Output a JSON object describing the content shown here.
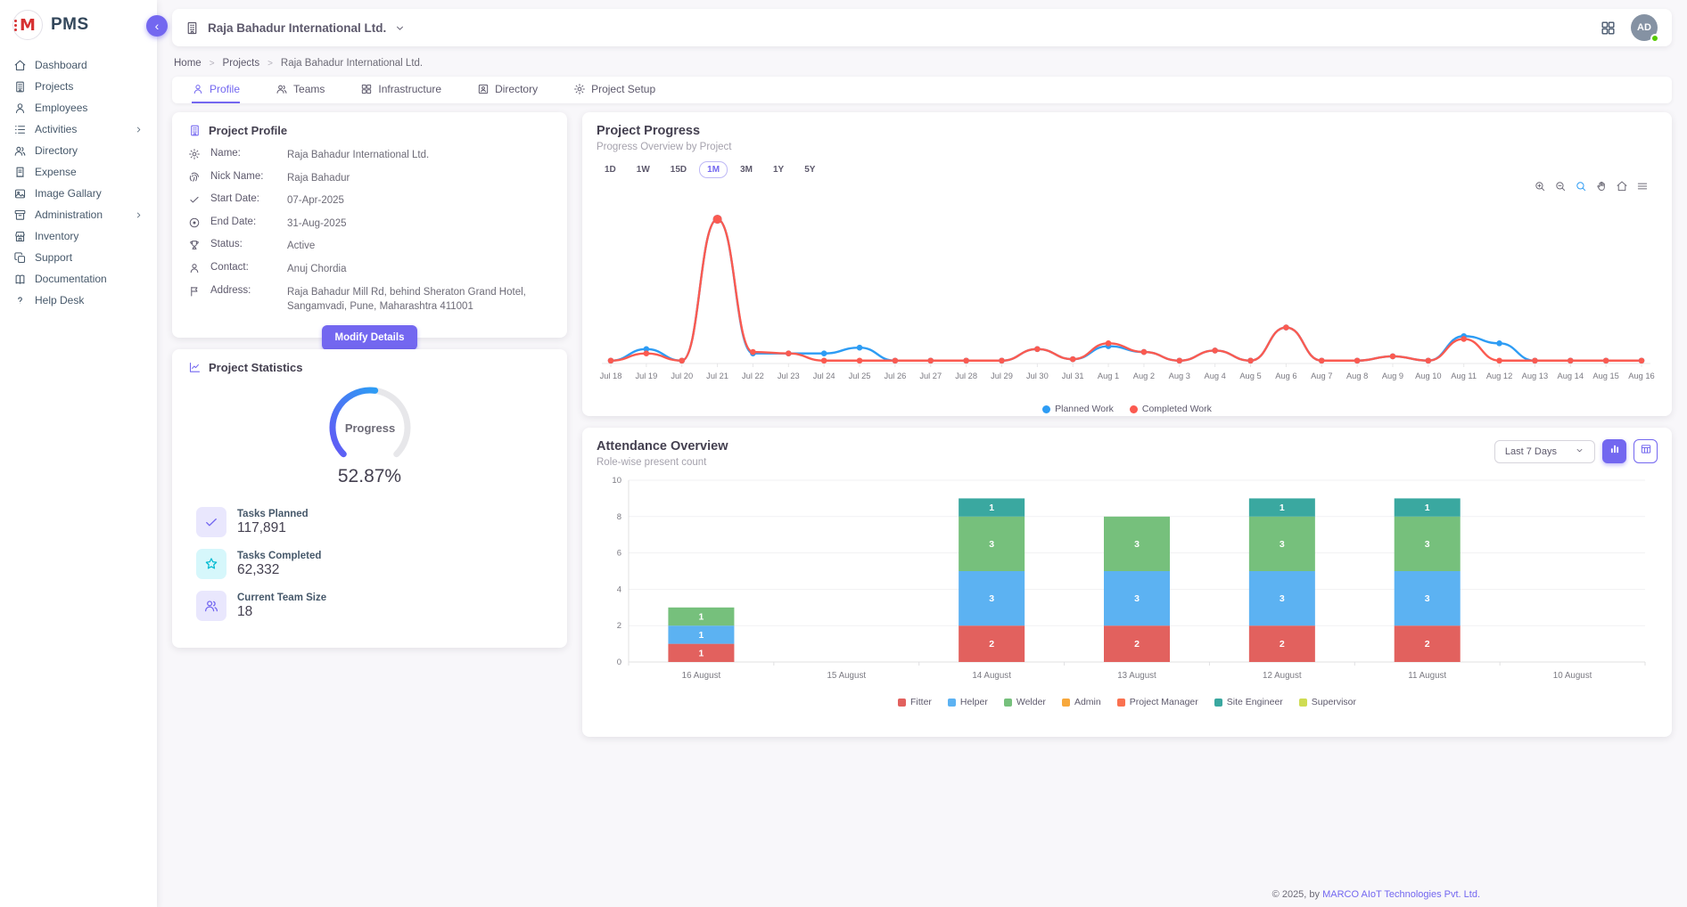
{
  "app": {
    "name": "PMS",
    "logo_letter": "M"
  },
  "sidebar": {
    "items": [
      {
        "label": "Dashboard",
        "icon": "home-icon",
        "submenu": false
      },
      {
        "label": "Projects",
        "icon": "building-icon",
        "submenu": false
      },
      {
        "label": "Employees",
        "icon": "user-icon",
        "submenu": false
      },
      {
        "label": "Activities",
        "icon": "list-icon",
        "submenu": true
      },
      {
        "label": "Directory",
        "icon": "users-icon",
        "submenu": false
      },
      {
        "label": "Expense",
        "icon": "receipt-icon",
        "submenu": false
      },
      {
        "label": "Image Gallary",
        "icon": "image-icon",
        "submenu": false
      },
      {
        "label": "Administration",
        "icon": "archive-icon",
        "submenu": true
      },
      {
        "label": "Inventory",
        "icon": "store-icon",
        "submenu": false
      },
      {
        "label": "Support",
        "icon": "copy-icon",
        "submenu": false
      },
      {
        "label": "Documentation",
        "icon": "book-icon",
        "submenu": false
      },
      {
        "label": "Help Desk",
        "icon": "help-icon",
        "submenu": false
      }
    ]
  },
  "header": {
    "company": "Raja Bahadur International Ltd.",
    "avatar_initials": "AD"
  },
  "breadcrumb": [
    "Home",
    "Projects",
    "Raja Bahadur International Ltd."
  ],
  "tabs": [
    {
      "label": "Profile",
      "icon": "user-icon",
      "active": true
    },
    {
      "label": "Teams",
      "icon": "users-icon",
      "active": false
    },
    {
      "label": "Infrastructure",
      "icon": "grid-icon",
      "active": false
    },
    {
      "label": "Directory",
      "icon": "id-card-icon",
      "active": false
    },
    {
      "label": "Project Setup",
      "icon": "gear-icon",
      "active": false
    }
  ],
  "profile_card": {
    "title": "Project Profile",
    "fields": [
      {
        "icon": "gear-icon",
        "label": "Name:",
        "value": "Raja Bahadur International Ltd."
      },
      {
        "icon": "fingerprint-icon",
        "label": "Nick Name:",
        "value": "Raja Bahadur"
      },
      {
        "icon": "check-icon",
        "label": "Start Date:",
        "value": "07-Apr-2025"
      },
      {
        "icon": "record-icon",
        "label": "End Date:",
        "value": "31-Aug-2025"
      },
      {
        "icon": "trophy-icon",
        "label": "Status:",
        "value": "Active"
      },
      {
        "icon": "person-icon",
        "label": "Contact:",
        "value": "Anuj Chordia"
      },
      {
        "icon": "flag-icon",
        "label": "Address:",
        "value": "Raja Bahadur Mill Rd, behind Sheraton Grand Hotel, Sangamvadi, Pune, Maharashtra 411001"
      }
    ],
    "button_label": "Modify Details"
  },
  "stats_card": {
    "title": "Project Statistics",
    "gauge_label": "Progress",
    "gauge_value": "52.87%",
    "gauge_percent": 52.87,
    "gauge_colors": {
      "start": "#6358f5",
      "end": "#2d9cf4",
      "track": "#e7e7ea"
    },
    "stats": [
      {
        "icon": "check-icon",
        "icon_bg": "#e9e7fd",
        "icon_color": "#7367f0",
        "label": "Tasks Planned",
        "value": "117,891"
      },
      {
        "icon": "star-icon",
        "icon_bg": "#d6f7fb",
        "icon_color": "#00bad1",
        "label": "Tasks Completed",
        "value": "62,332"
      },
      {
        "icon": "team-icon",
        "icon_bg": "#e9e7fd",
        "icon_color": "#7367f0",
        "label": "Current Team Size",
        "value": "18"
      }
    ]
  },
  "progress_card": {
    "title": "Project Progress",
    "subtitle": "Progress Overview by Project",
    "ranges": [
      "1D",
      "1W",
      "15D",
      "1M",
      "3M",
      "1Y",
      "5Y"
    ],
    "active_range": "1M",
    "toolbar_icons": [
      "zoom-in-icon",
      "zoom-out-icon",
      "selection-zoom-icon",
      "pan-icon",
      "home-icon",
      "menu-icon"
    ]
  },
  "attendance_card": {
    "title": "Attendance Overview",
    "subtitle": "Role-wise present count",
    "filter_label": "Last 7 Days",
    "view_buttons": [
      "bar-chart-icon",
      "table-icon"
    ],
    "active_view": "bar-chart-icon"
  },
  "footer": {
    "prefix": "© 2025, by ",
    "link_text": "MARCO AIoT Technologies Pvt. Ltd."
  },
  "chart_data": [
    {
      "type": "line",
      "title": "Project Progress",
      "x": [
        "Jul 18",
        "Jul 19",
        "Jul 20",
        "Jul 21",
        "Jul 22",
        "Jul 23",
        "Jul 24",
        "Jul 25",
        "Jul 26",
        "Jul 27",
        "Jul 28",
        "Jul 29",
        "Jul 30",
        "Jul 31",
        "Aug 1",
        "Aug 2",
        "Aug 3",
        "Aug 4",
        "Aug 5",
        "Aug 6",
        "Aug 7",
        "Aug 8",
        "Aug 9",
        "Aug 10",
        "Aug 11",
        "Aug 12",
        "Aug 13",
        "Aug 14",
        "Aug 15",
        "Aug 16"
      ],
      "series": [
        {
          "name": "Planned Work",
          "color": "#2d9cf4",
          "values": [
            2,
            10,
            2,
            100,
            7,
            7,
            7,
            11,
            2,
            2,
            2,
            2,
            10,
            3,
            12,
            8,
            2,
            9,
            2,
            25,
            2,
            2,
            5,
            2,
            19,
            14,
            2,
            2,
            2,
            2
          ]
        },
        {
          "name": "Completed Work",
          "color": "#fb5a50",
          "values": [
            2,
            7,
            2,
            100,
            8,
            7,
            2,
            2,
            2,
            2,
            2,
            2,
            10,
            3,
            14,
            8,
            2,
            9,
            2,
            25,
            2,
            2,
            5,
            2,
            17,
            2,
            2,
            2,
            2,
            2
          ]
        }
      ],
      "ylim": [
        0,
        105
      ],
      "grid": false,
      "legend_position": "bottom"
    },
    {
      "type": "bar",
      "stacked": true,
      "title": "Attendance Overview",
      "categories": [
        "16 August",
        "15 August",
        "14 August",
        "13 August",
        "12 August",
        "11 August",
        "10 August"
      ],
      "series": [
        {
          "name": "Fitter",
          "color": "#e2615e",
          "values": [
            1,
            0,
            2,
            2,
            2,
            2,
            0
          ]
        },
        {
          "name": "Helper",
          "color": "#5cb2f2",
          "values": [
            1,
            0,
            3,
            3,
            3,
            3,
            0
          ]
        },
        {
          "name": "Welder",
          "color": "#76c07c",
          "values": [
            1,
            0,
            3,
            3,
            3,
            3,
            0
          ]
        },
        {
          "name": "Admin",
          "color": "#f7a83c",
          "values": [
            0,
            0,
            0,
            0,
            0,
            0,
            0
          ]
        },
        {
          "name": "Project Manager",
          "color": "#fa7150",
          "values": [
            0,
            0,
            0,
            0,
            0,
            0,
            0
          ]
        },
        {
          "name": "Site Engineer",
          "color": "#3aa8a0",
          "values": [
            0,
            0,
            1,
            0,
            1,
            1,
            0
          ]
        },
        {
          "name": "Supervisor",
          "color": "#cfdc52",
          "values": [
            0,
            0,
            0,
            0,
            0,
            0,
            0
          ]
        }
      ],
      "ylim": [
        0,
        10
      ],
      "yticks": [
        0,
        2,
        4,
        6,
        8,
        10
      ],
      "grid": true,
      "legend_position": "bottom"
    }
  ]
}
